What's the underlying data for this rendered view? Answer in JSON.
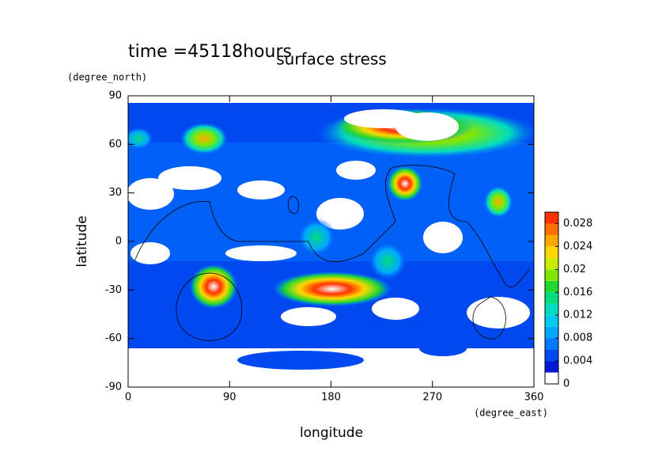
{
  "chart_data": {
    "type": "contour",
    "title": "surface stress",
    "annotation": "time =45118hours",
    "x_label": "longitude",
    "x_unit": "(degree_east)",
    "y_label": "latitude",
    "y_unit": "(degree_north)",
    "xlim": [
      0,
      360
    ],
    "xticks": [
      0,
      90,
      180,
      270,
      360
    ],
    "ylim": [
      -90,
      90
    ],
    "yticks": [
      -90,
      -60,
      -30,
      0,
      30,
      60,
      90
    ],
    "colorbar": {
      "lim": [
        0,
        0.03
      ],
      "ticks": [
        0,
        0.004,
        0.008,
        0.012,
        0.016,
        0.02,
        0.024,
        0.028
      ],
      "colors": [
        "#ffffff",
        "#0018d8",
        "#0048f0",
        "#0078ff",
        "#00a8ff",
        "#00ccf0",
        "#00dcc0",
        "#00dc80",
        "#20d830",
        "#80e800",
        "#c8ec00",
        "#ffd800",
        "#ffa800",
        "#ff7000",
        "#ff3000"
      ]
    }
  }
}
